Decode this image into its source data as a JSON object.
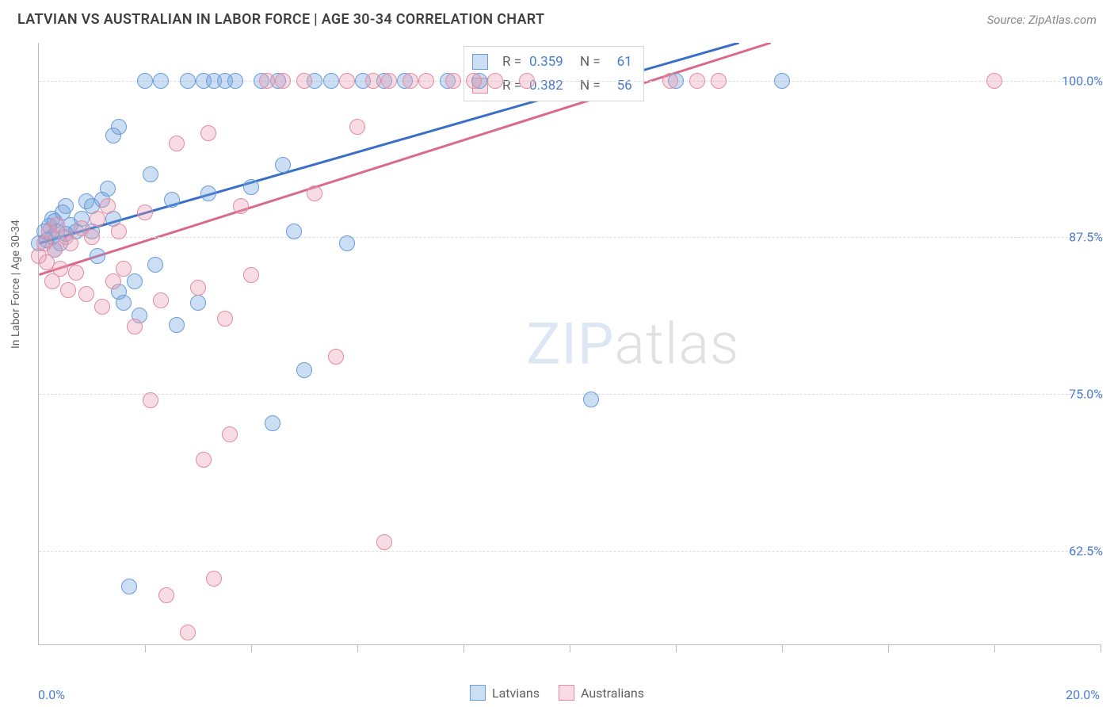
{
  "title": "LATVIAN VS AUSTRALIAN IN LABOR FORCE | AGE 30-34 CORRELATION CHART",
  "source": "Source: ZipAtlas.com",
  "y_axis_label": "In Labor Force | Age 30-34",
  "watermark": {
    "part1": "ZIP",
    "part2": "atlas"
  },
  "chart": {
    "type": "scatter",
    "xlim": [
      0,
      20
    ],
    "ylim": [
      55,
      103
    ],
    "y_ticks": [
      {
        "v": 62.5,
        "label": "62.5%"
      },
      {
        "v": 75.0,
        "label": "75.0%"
      },
      {
        "v": 87.5,
        "label": "87.5%"
      },
      {
        "v": 100.0,
        "label": "100.0%"
      }
    ],
    "x_tick_positions": [
      2,
      4,
      6,
      8,
      10,
      12,
      14,
      16,
      18,
      20
    ],
    "x_labels": {
      "min": "0.0%",
      "max": "20.0%"
    },
    "grid_color": "#dcdcdc",
    "series": [
      {
        "name": "Latvians",
        "fill": "rgba(110,160,220,0.35)",
        "stroke": "#6a9cd8",
        "reg_color": "#3a6fc5",
        "reg_width": 3,
        "R": "0.359",
        "N": "61",
        "regression": {
          "x1": 0,
          "y1": 87.0,
          "x2": 13.2,
          "y2": 103.0
        },
        "points": [
          [
            0.0,
            87.0
          ],
          [
            0.1,
            88.0
          ],
          [
            0.15,
            87.3
          ],
          [
            0.2,
            88.4
          ],
          [
            0.25,
            89.0
          ],
          [
            0.25,
            87.5
          ],
          [
            0.3,
            86.5
          ],
          [
            0.3,
            88.8
          ],
          [
            0.35,
            88.0
          ],
          [
            0.4,
            87.0
          ],
          [
            0.45,
            89.5
          ],
          [
            0.5,
            87.8
          ],
          [
            0.5,
            90.0
          ],
          [
            0.6,
            88.5
          ],
          [
            0.7,
            88.0
          ],
          [
            0.8,
            89.0
          ],
          [
            0.9,
            90.4
          ],
          [
            1.0,
            90.0
          ],
          [
            1.0,
            88.0
          ],
          [
            1.1,
            86.0
          ],
          [
            1.2,
            90.5
          ],
          [
            1.3,
            91.4
          ],
          [
            1.4,
            89.0
          ],
          [
            1.4,
            95.6
          ],
          [
            1.5,
            96.3
          ],
          [
            1.5,
            83.2
          ],
          [
            1.6,
            82.3
          ],
          [
            1.7,
            59.7
          ],
          [
            1.8,
            84.0
          ],
          [
            1.9,
            81.3
          ],
          [
            2.0,
            100
          ],
          [
            2.1,
            92.5
          ],
          [
            2.2,
            85.3
          ],
          [
            2.3,
            100
          ],
          [
            2.5,
            90.5
          ],
          [
            2.6,
            80.5
          ],
          [
            2.8,
            100
          ],
          [
            3.0,
            82.3
          ],
          [
            3.1,
            100
          ],
          [
            3.2,
            91.0
          ],
          [
            3.3,
            100
          ],
          [
            3.5,
            100
          ],
          [
            3.7,
            100
          ],
          [
            4.0,
            91.5
          ],
          [
            4.2,
            100
          ],
          [
            4.4,
            72.7
          ],
          [
            4.5,
            100
          ],
          [
            4.6,
            93.3
          ],
          [
            4.8,
            88.0
          ],
          [
            5.0,
            76.9
          ],
          [
            5.2,
            100
          ],
          [
            5.5,
            100
          ],
          [
            5.8,
            87.0
          ],
          [
            6.1,
            100
          ],
          [
            6.5,
            100
          ],
          [
            6.9,
            100
          ],
          [
            7.7,
            100
          ],
          [
            8.3,
            100
          ],
          [
            10.4,
            74.6
          ],
          [
            12.0,
            100
          ],
          [
            14.0,
            100
          ]
        ]
      },
      {
        "name": "Australians",
        "fill": "rgba(235,155,175,0.35)",
        "stroke": "#e38ba3",
        "reg_color": "#d86a8a",
        "reg_width": 3,
        "R": "0.382",
        "N": "56",
        "regression": {
          "x1": 0,
          "y1": 84.5,
          "x2": 13.8,
          "y2": 103.0
        },
        "points": [
          [
            0.0,
            86.0
          ],
          [
            0.1,
            87.0
          ],
          [
            0.15,
            85.5
          ],
          [
            0.2,
            88.0
          ],
          [
            0.25,
            84.0
          ],
          [
            0.3,
            86.5
          ],
          [
            0.35,
            88.5
          ],
          [
            0.4,
            85.0
          ],
          [
            0.5,
            87.5
          ],
          [
            0.55,
            83.3
          ],
          [
            0.6,
            87.0
          ],
          [
            0.7,
            84.7
          ],
          [
            0.8,
            88.2
          ],
          [
            0.9,
            83.0
          ],
          [
            1.0,
            87.5
          ],
          [
            1.1,
            89.0
          ],
          [
            1.2,
            82.0
          ],
          [
            1.3,
            90.0
          ],
          [
            1.4,
            84.0
          ],
          [
            1.5,
            88.0
          ],
          [
            1.6,
            85.0
          ],
          [
            1.8,
            80.4
          ],
          [
            2.0,
            89.5
          ],
          [
            2.1,
            74.5
          ],
          [
            2.3,
            82.5
          ],
          [
            2.4,
            59.0
          ],
          [
            2.6,
            95.0
          ],
          [
            2.8,
            56.0
          ],
          [
            3.0,
            83.5
          ],
          [
            3.1,
            69.8
          ],
          [
            3.2,
            95.8
          ],
          [
            3.3,
            60.3
          ],
          [
            3.5,
            81.0
          ],
          [
            3.6,
            71.8
          ],
          [
            3.8,
            90.0
          ],
          [
            4.0,
            84.5
          ],
          [
            4.3,
            100
          ],
          [
            4.6,
            100
          ],
          [
            5.0,
            100
          ],
          [
            5.2,
            91.0
          ],
          [
            5.6,
            78.0
          ],
          [
            5.8,
            100
          ],
          [
            6.0,
            96.3
          ],
          [
            6.3,
            100
          ],
          [
            6.5,
            63.2
          ],
          [
            6.6,
            100
          ],
          [
            7.0,
            100
          ],
          [
            7.3,
            100
          ],
          [
            7.8,
            100
          ],
          [
            8.2,
            100
          ],
          [
            8.6,
            100
          ],
          [
            9.2,
            100
          ],
          [
            11.9,
            100
          ],
          [
            12.4,
            100
          ],
          [
            12.8,
            100
          ],
          [
            18.0,
            100
          ]
        ]
      }
    ],
    "marker_radius": 10
  }
}
